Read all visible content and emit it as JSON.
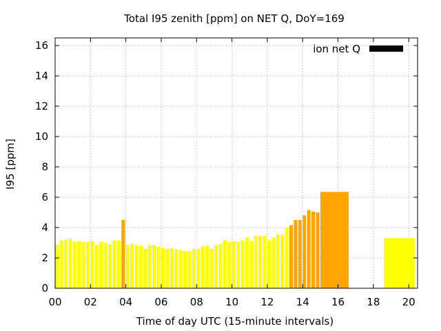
{
  "chart_data": {
    "type": "bar",
    "title": "Total I95 zenith [ppm] on NET Q, DoY=169",
    "xlabel": "Time of day UTC (15-minute intervals)",
    "ylabel": "I95 [ppm]",
    "xlim": [
      0,
      20.5
    ],
    "ylim": [
      0,
      16.5
    ],
    "x_ticks": [
      "00",
      "02",
      "04",
      "06",
      "08",
      "10",
      "12",
      "14",
      "16",
      "18",
      "20"
    ],
    "y_ticks": [
      "0",
      "2",
      "4",
      "6",
      "8",
      "10",
      "12",
      "14",
      "16"
    ],
    "grid": true,
    "legend": {
      "position": "top-right",
      "label": "ion net Q",
      "color": "#000000"
    },
    "colors": {
      "normal": "#ffff00",
      "elevated": "#ffa500",
      "grid": "#aaaaaa"
    },
    "interval_hours": 0.25,
    "bars": [
      {
        "t": 0.0,
        "v": 2.85
      },
      {
        "t": 0.25,
        "v": 3.15
      },
      {
        "t": 0.5,
        "v": 3.2
      },
      {
        "t": 0.75,
        "v": 3.25
      },
      {
        "t": 1.0,
        "v": 3.05
      },
      {
        "t": 1.25,
        "v": 3.1
      },
      {
        "t": 1.5,
        "v": 3.05
      },
      {
        "t": 1.75,
        "v": 3.05
      },
      {
        "t": 2.0,
        "v": 3.1
      },
      {
        "t": 2.25,
        "v": 2.85
      },
      {
        "t": 2.5,
        "v": 3.05
      },
      {
        "t": 2.75,
        "v": 3.0
      },
      {
        "t": 3.0,
        "v": 2.9
      },
      {
        "t": 3.25,
        "v": 3.15
      },
      {
        "t": 3.5,
        "v": 3.15
      },
      {
        "t": 3.75,
        "v": 4.5,
        "level": "elevated"
      },
      {
        "t": 4.0,
        "v": 2.85
      },
      {
        "t": 4.25,
        "v": 2.9
      },
      {
        "t": 4.5,
        "v": 2.85
      },
      {
        "t": 4.75,
        "v": 2.8
      },
      {
        "t": 5.0,
        "v": 2.6
      },
      {
        "t": 5.25,
        "v": 2.85
      },
      {
        "t": 5.5,
        "v": 2.85
      },
      {
        "t": 5.75,
        "v": 2.75
      },
      {
        "t": 6.0,
        "v": 2.65
      },
      {
        "t": 6.25,
        "v": 2.6
      },
      {
        "t": 6.5,
        "v": 2.65
      },
      {
        "t": 6.75,
        "v": 2.55
      },
      {
        "t": 7.0,
        "v": 2.5
      },
      {
        "t": 7.25,
        "v": 2.45
      },
      {
        "t": 7.5,
        "v": 2.45
      },
      {
        "t": 7.75,
        "v": 2.6
      },
      {
        "t": 8.0,
        "v": 2.6
      },
      {
        "t": 8.25,
        "v": 2.75
      },
      {
        "t": 8.5,
        "v": 2.8
      },
      {
        "t": 8.75,
        "v": 2.6
      },
      {
        "t": 9.0,
        "v": 2.85
      },
      {
        "t": 9.25,
        "v": 2.9
      },
      {
        "t": 9.5,
        "v": 3.15
      },
      {
        "t": 9.75,
        "v": 3.05
      },
      {
        "t": 10.0,
        "v": 3.1
      },
      {
        "t": 10.25,
        "v": 3.05
      },
      {
        "t": 10.5,
        "v": 3.15
      },
      {
        "t": 10.75,
        "v": 3.35
      },
      {
        "t": 11.0,
        "v": 3.1
      },
      {
        "t": 11.25,
        "v": 3.45
      },
      {
        "t": 11.5,
        "v": 3.45
      },
      {
        "t": 11.75,
        "v": 3.45
      },
      {
        "t": 12.0,
        "v": 3.15
      },
      {
        "t": 12.25,
        "v": 3.35
      },
      {
        "t": 12.5,
        "v": 3.55
      },
      {
        "t": 12.75,
        "v": 3.55
      },
      {
        "t": 13.0,
        "v": 4.0
      },
      {
        "t": 13.25,
        "v": 4.15,
        "level": "elevated"
      },
      {
        "t": 13.5,
        "v": 4.5,
        "level": "elevated"
      },
      {
        "t": 13.75,
        "v": 4.5,
        "level": "elevated"
      },
      {
        "t": 14.0,
        "v": 4.8,
        "level": "elevated"
      },
      {
        "t": 14.25,
        "v": 5.15,
        "level": "elevated"
      },
      {
        "t": 14.5,
        "v": 5.05,
        "level": "elevated"
      },
      {
        "t": 14.75,
        "v": 5.0,
        "level": "elevated"
      },
      {
        "t": 15.0,
        "v": 6.35,
        "level": "elevated",
        "span": 1.6
      },
      {
        "t": 18.6,
        "v": 3.3,
        "span": 1.75
      }
    ]
  }
}
